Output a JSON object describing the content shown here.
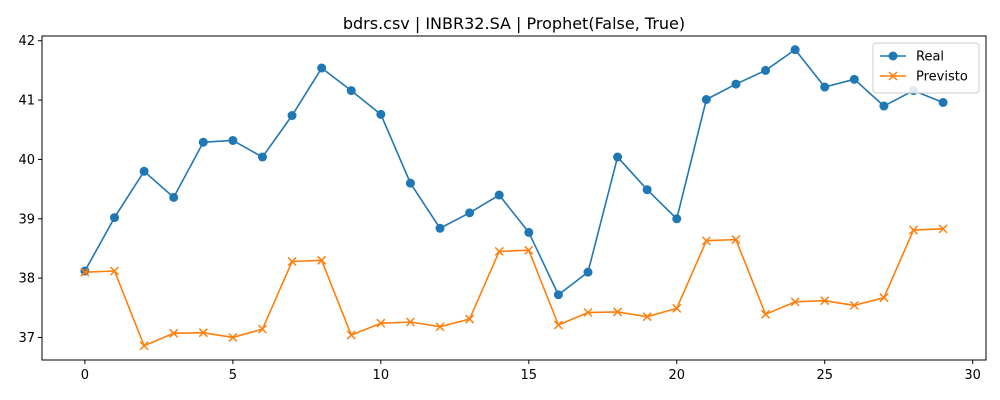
{
  "chart_data": {
    "type": "line",
    "title": "bdrs.csv | INBR32.SA | Prophet(False, True)",
    "xlabel": "",
    "ylabel": "",
    "xlim": [
      -1.45,
      30.45
    ],
    "ylim": [
      36.62,
      42.08
    ],
    "x_ticks": [
      0,
      5,
      10,
      15,
      20,
      25,
      30
    ],
    "x_tick_labels": [
      "0",
      "5",
      "10",
      "15",
      "20",
      "25",
      "30"
    ],
    "y_ticks": [
      37,
      38,
      39,
      40,
      41,
      42
    ],
    "y_tick_labels": [
      "37",
      "38",
      "39",
      "40",
      "41",
      "42"
    ],
    "grid": false,
    "legend_position": "top-right",
    "x": [
      0,
      1,
      2,
      3,
      4,
      5,
      6,
      7,
      8,
      9,
      10,
      11,
      12,
      13,
      14,
      15,
      16,
      17,
      18,
      19,
      20,
      21,
      22,
      23,
      24,
      25,
      26,
      27,
      28,
      29
    ],
    "series": [
      {
        "name": "Real",
        "color": "#1f77b4",
        "marker": "circle",
        "values": [
          38.12,
          39.02,
          39.8,
          39.36,
          40.29,
          40.32,
          40.04,
          40.74,
          41.54,
          41.16,
          40.76,
          39.6,
          38.84,
          39.1,
          39.4,
          38.77,
          37.72,
          38.1,
          40.04,
          39.49,
          39.0,
          41.01,
          41.27,
          41.5,
          41.85,
          41.22,
          41.35,
          40.9,
          41.16,
          40.96
        ]
      },
      {
        "name": "Previsto",
        "color": "#ff7f0e",
        "marker": "x",
        "values": [
          38.1,
          38.12,
          36.86,
          37.07,
          37.08,
          37.0,
          37.14,
          38.28,
          38.3,
          37.04,
          37.24,
          37.26,
          37.18,
          37.31,
          38.45,
          38.47,
          37.21,
          37.42,
          37.43,
          37.35,
          37.49,
          38.63,
          38.65,
          37.39,
          37.6,
          37.62,
          37.54,
          37.67,
          38.81,
          38.83
        ]
      }
    ]
  }
}
